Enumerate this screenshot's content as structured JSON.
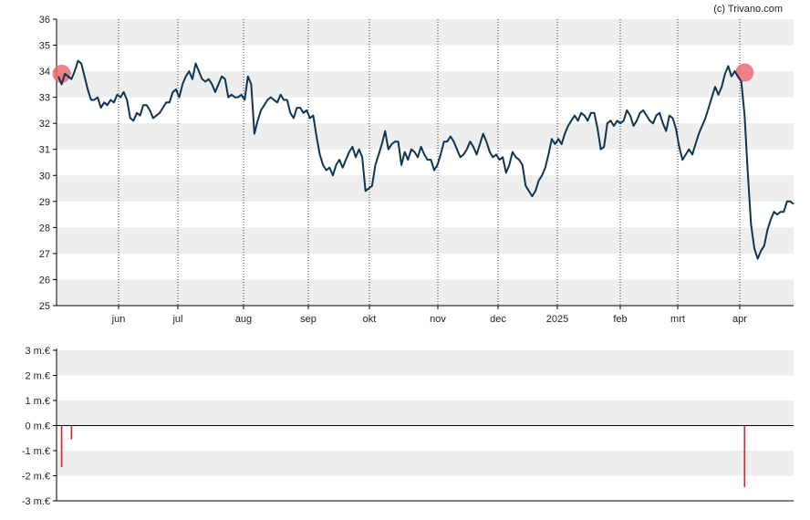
{
  "watermark": "(c) Trivano.com",
  "colors": {
    "band": "#eeeeee",
    "price_line": "#0e3552",
    "marker": "#ee6a73",
    "volume_bar": "#e31e2d",
    "axis": "#000000",
    "grid": "#333333"
  },
  "chart_data": [
    {
      "type": "line",
      "title": "",
      "xlabel": "",
      "ylabel": "",
      "ylim": [
        25,
        36
      ],
      "yticks": [
        25,
        26,
        27,
        28,
        29,
        30,
        31,
        32,
        33,
        34,
        35,
        36
      ],
      "grid": "horizontal alternating bands, dotted vertical month lines",
      "x_tick_labels": [
        "jun",
        "jul",
        "aug",
        "sep",
        "okt",
        "nov",
        "dec",
        "2025",
        "feb",
        "mrt",
        "apr"
      ],
      "series": [
        {
          "values": [
            33.8,
            33.5,
            33.9,
            33.8,
            33.7,
            34.0,
            34.4,
            34.3,
            33.8,
            33.3,
            32.9,
            32.9,
            33.0,
            32.6,
            32.8,
            32.7,
            32.9,
            32.8,
            33.1,
            33.0,
            33.2,
            32.9,
            32.2,
            32.1,
            32.4,
            32.3,
            32.7,
            32.7,
            32.5,
            32.2,
            32.3,
            32.4,
            32.6,
            32.8,
            32.8,
            33.2,
            33.3,
            33.0,
            33.5,
            33.8,
            34.0,
            33.7,
            34.3,
            34.0,
            33.7,
            33.6,
            33.7,
            33.5,
            33.2,
            33.5,
            33.8,
            33.7,
            33.0,
            33.1,
            33.0,
            33.0,
            33.1,
            32.9,
            33.8,
            33.5,
            31.6,
            32.1,
            32.5,
            32.7,
            32.9,
            33.0,
            32.9,
            32.8,
            33.1,
            32.9,
            32.9,
            32.4,
            32.2,
            32.6,
            32.6,
            32.4,
            32.5,
            32.2,
            32.3,
            31.5,
            30.8,
            30.4,
            30.2,
            30.3,
            30.0,
            30.4,
            30.6,
            30.3,
            30.6,
            30.9,
            31.1,
            30.7,
            31.0,
            30.7,
            29.4,
            29.5,
            29.6,
            30.4,
            30.8,
            31.2,
            31.7,
            31.0,
            31.2,
            31.3,
            31.3,
            30.4,
            30.9,
            30.6,
            31.0,
            30.9,
            30.7,
            31.1,
            30.8,
            30.6,
            30.6,
            30.2,
            30.4,
            30.8,
            31.3,
            31.3,
            31.5,
            31.3,
            31.0,
            30.7,
            30.8,
            31.0,
            31.3,
            31.1,
            30.8,
            31.2,
            31.6,
            31.3,
            30.9,
            30.7,
            30.8,
            30.6,
            30.7,
            30.1,
            30.4,
            30.9,
            30.7,
            30.6,
            30.4,
            29.6,
            29.4,
            29.2,
            29.4,
            29.8,
            30.0,
            30.3,
            30.8,
            31.4,
            31.2,
            31.4,
            31.2,
            31.6,
            31.9,
            32.1,
            32.3,
            32.1,
            32.4,
            32.3,
            32.1,
            32.4,
            32.4,
            31.8,
            31.0,
            31.1,
            32.0,
            32.1,
            31.9,
            32.1,
            32.0,
            32.1,
            32.5,
            32.3,
            31.9,
            32.1,
            32.4,
            32.5,
            32.3,
            32.1,
            32.0,
            32.3,
            32.4,
            32.0,
            31.7,
            32.3,
            32.2,
            31.8,
            31.1,
            30.6,
            30.8,
            31.0,
            30.8,
            31.2,
            31.6,
            31.9,
            32.2,
            32.6,
            33.0,
            33.4,
            33.1,
            33.4,
            33.9,
            34.2,
            33.8,
            34.0,
            33.8,
            33.6,
            32.3,
            30.1,
            28.1,
            27.2,
            26.8,
            27.1,
            27.3,
            27.9,
            28.3,
            28.6,
            28.5,
            28.6,
            28.6,
            29.0,
            29.0,
            28.9
          ]
        }
      ],
      "markers": [
        {
          "index": 1,
          "value": 33.9
        },
        {
          "index": 210,
          "value": 33.95
        }
      ]
    },
    {
      "type": "bar",
      "title": "",
      "xlabel": "",
      "ylabel": "",
      "ylim": [
        -3,
        3
      ],
      "ytick_labels": [
        "3 m.€",
        "2 m.€",
        "1 m.€",
        "0 m.€",
        "-1 m.€",
        "-2 m.€",
        "-3 m.€"
      ],
      "bars": [
        {
          "index": 1,
          "value": -1.65
        },
        {
          "index": 4,
          "value": -0.55
        },
        {
          "index": 210,
          "value": -2.45
        }
      ]
    }
  ]
}
